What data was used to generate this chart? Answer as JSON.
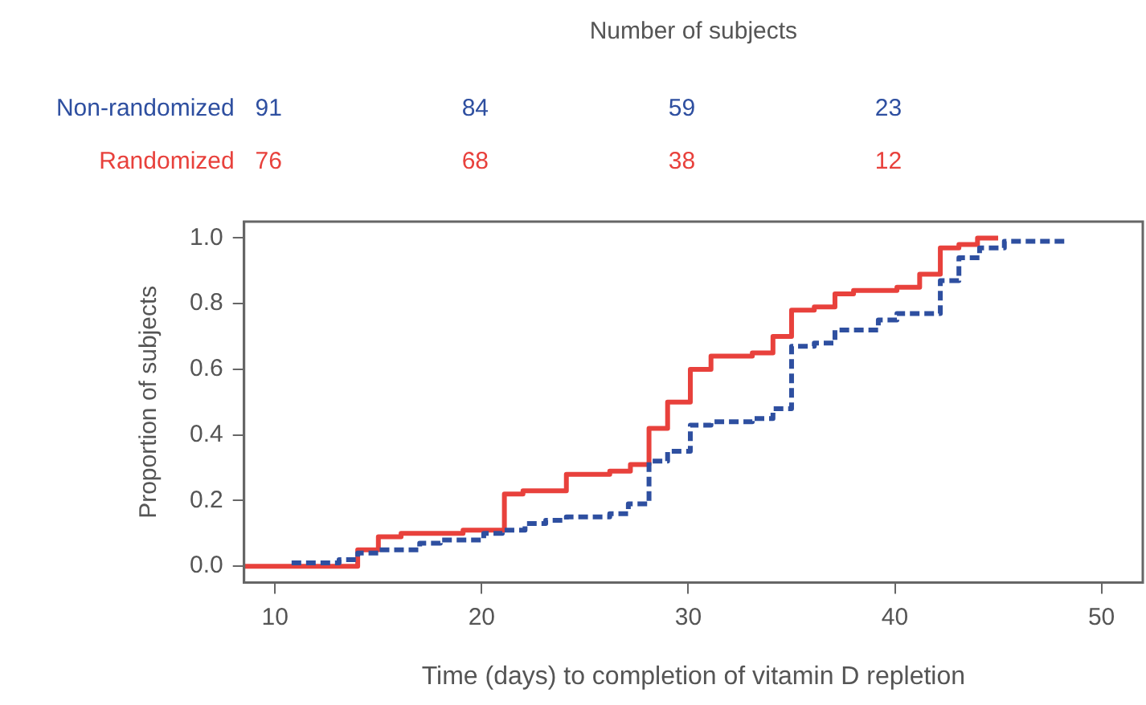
{
  "chart_data": {
    "type": "step",
    "xlabel": "Time (days) to completion of vitamin D repletion",
    "ylabel": "Proportion of subjects",
    "xlim": [
      8.5,
      52
    ],
    "xticks": [
      10,
      20,
      30,
      40,
      50
    ],
    "ylim": [
      -0.05,
      1.05
    ],
    "yticks": [
      {
        "value": 0,
        "label": "0.0"
      },
      {
        "value": 0.2,
        "label": "0.2"
      },
      {
        "value": 0.4,
        "label": "0.4"
      },
      {
        "value": 0.6,
        "label": "0.6"
      },
      {
        "value": 0.8,
        "label": "0.8"
      },
      {
        "value": 1,
        "label": "1.0"
      }
    ],
    "grid": false,
    "legend": "top left",
    "marker": "none",
    "series": [
      {
        "name": "Non-randomized",
        "color": "#2e4fa0",
        "line_style": "dashed",
        "x": [
          10.8,
          13.1,
          14,
          15,
          17,
          18,
          20.1,
          21,
          22.1,
          23.1,
          24.1,
          26.2,
          27.1,
          28.1,
          29,
          30.1,
          31.1,
          33.1,
          34.1,
          35,
          36.1,
          37.1,
          39.2,
          40.1,
          42.2,
          43.1,
          44.1,
          45.3,
          48.2
        ],
        "values": [
          0.01,
          0.02,
          0.04,
          0.05,
          0.07,
          0.08,
          0.1,
          0.11,
          0.13,
          0.14,
          0.15,
          0.16,
          0.19,
          0.32,
          0.35,
          0.43,
          0.44,
          0.45,
          0.48,
          0.67,
          0.68,
          0.72,
          0.75,
          0.77,
          0.87,
          0.94,
          0.97,
          0.99,
          0.99
        ]
      },
      {
        "name": "Randomized",
        "color": "#e8413c",
        "line_style": "solid",
        "x": [
          8.5,
          14,
          15,
          16.1,
          19.1,
          21.1,
          22,
          24.1,
          26.2,
          27.2,
          28.1,
          29,
          30.1,
          31.1,
          33.1,
          34.1,
          35,
          36.1,
          37.1,
          38,
          40.1,
          41.2,
          42.2,
          43.1,
          44,
          45
        ],
        "values": [
          0,
          0.05,
          0.09,
          0.1,
          0.11,
          0.22,
          0.23,
          0.28,
          0.29,
          0.31,
          0.42,
          0.5,
          0.6,
          0.64,
          0.65,
          0.7,
          0.78,
          0.79,
          0.83,
          0.84,
          0.85,
          0.89,
          0.97,
          0.98,
          1,
          1
        ]
      }
    ],
    "annotations": [
      "Number of subjects",
      "91",
      "84",
      "59",
      "23",
      "76",
      "68",
      "38",
      "12"
    ]
  }
}
